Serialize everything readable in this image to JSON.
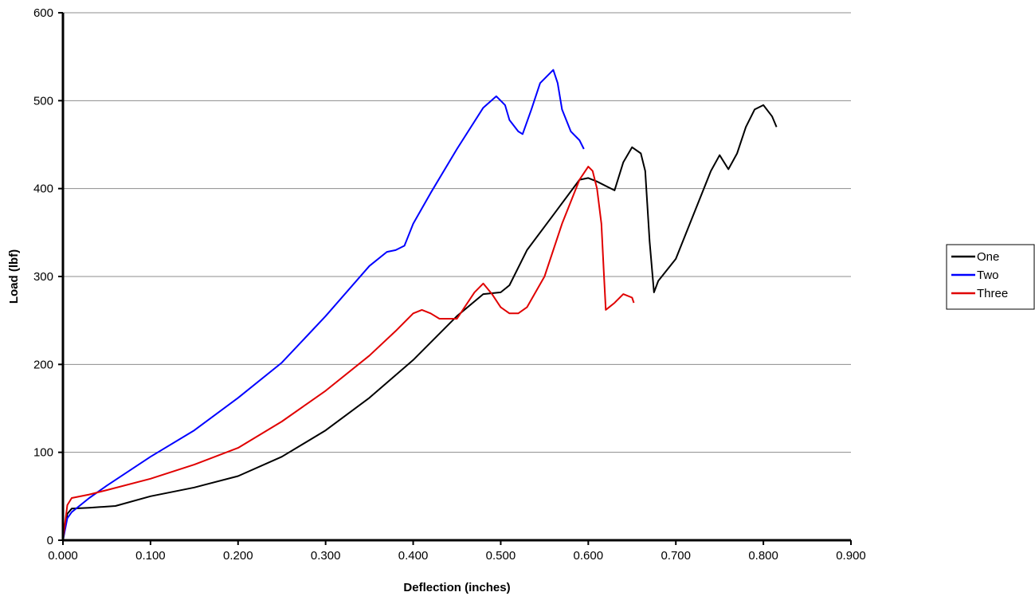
{
  "chart_data": {
    "type": "line",
    "title": "",
    "xlabel": "Deflection (inches)",
    "ylabel": "Load (lbf)",
    "xlim": [
      0,
      0.9
    ],
    "ylim": [
      0,
      600
    ],
    "x_ticks": [
      "0.000",
      "0.100",
      "0.200",
      "0.300",
      "0.400",
      "0.500",
      "0.600",
      "0.700",
      "0.800",
      "0.900"
    ],
    "y_ticks": [
      "0",
      "100",
      "200",
      "300",
      "400",
      "500",
      "600"
    ],
    "grid": "horizontal",
    "legend_position": "right",
    "series": [
      {
        "name": "One",
        "color": "#000000",
        "points": [
          [
            0,
            0
          ],
          [
            0.005,
            30
          ],
          [
            0.01,
            36
          ],
          [
            0.03,
            37
          ],
          [
            0.06,
            39
          ],
          [
            0.1,
            50
          ],
          [
            0.15,
            60
          ],
          [
            0.2,
            73
          ],
          [
            0.25,
            95
          ],
          [
            0.3,
            125
          ],
          [
            0.35,
            162
          ],
          [
            0.4,
            205
          ],
          [
            0.45,
            255
          ],
          [
            0.48,
            280
          ],
          [
            0.5,
            282
          ],
          [
            0.51,
            290
          ],
          [
            0.53,
            330
          ],
          [
            0.56,
            370
          ],
          [
            0.59,
            410
          ],
          [
            0.6,
            412
          ],
          [
            0.61,
            408
          ],
          [
            0.63,
            398
          ],
          [
            0.64,
            430
          ],
          [
            0.65,
            447
          ],
          [
            0.66,
            440
          ],
          [
            0.665,
            420
          ],
          [
            0.67,
            340
          ],
          [
            0.675,
            282
          ],
          [
            0.68,
            295
          ],
          [
            0.7,
            320
          ],
          [
            0.72,
            370
          ],
          [
            0.74,
            420
          ],
          [
            0.75,
            438
          ],
          [
            0.76,
            422
          ],
          [
            0.77,
            440
          ],
          [
            0.78,
            470
          ],
          [
            0.79,
            490
          ],
          [
            0.8,
            495
          ],
          [
            0.81,
            482
          ],
          [
            0.815,
            470
          ]
        ]
      },
      {
        "name": "Two",
        "color": "#0000ff",
        "points": [
          [
            0,
            0
          ],
          [
            0.005,
            25
          ],
          [
            0.01,
            32
          ],
          [
            0.03,
            48
          ],
          [
            0.05,
            62
          ],
          [
            0.1,
            95
          ],
          [
            0.15,
            125
          ],
          [
            0.2,
            162
          ],
          [
            0.25,
            202
          ],
          [
            0.3,
            255
          ],
          [
            0.35,
            312
          ],
          [
            0.37,
            328
          ],
          [
            0.38,
            330
          ],
          [
            0.39,
            335
          ],
          [
            0.4,
            360
          ],
          [
            0.42,
            395
          ],
          [
            0.45,
            445
          ],
          [
            0.48,
            492
          ],
          [
            0.495,
            505
          ],
          [
            0.505,
            495
          ],
          [
            0.51,
            478
          ],
          [
            0.52,
            465
          ],
          [
            0.525,
            462
          ],
          [
            0.535,
            490
          ],
          [
            0.545,
            520
          ],
          [
            0.56,
            535
          ],
          [
            0.565,
            520
          ],
          [
            0.57,
            490
          ],
          [
            0.58,
            465
          ],
          [
            0.59,
            455
          ],
          [
            0.595,
            445
          ]
        ]
      },
      {
        "name": "Three",
        "color": "#e00000",
        "points": [
          [
            0,
            0
          ],
          [
            0.005,
            40
          ],
          [
            0.01,
            48
          ],
          [
            0.03,
            52
          ],
          [
            0.05,
            57
          ],
          [
            0.1,
            70
          ],
          [
            0.15,
            86
          ],
          [
            0.2,
            105
          ],
          [
            0.25,
            135
          ],
          [
            0.3,
            170
          ],
          [
            0.35,
            210
          ],
          [
            0.38,
            238
          ],
          [
            0.4,
            258
          ],
          [
            0.41,
            262
          ],
          [
            0.42,
            258
          ],
          [
            0.43,
            252
          ],
          [
            0.45,
            252
          ],
          [
            0.47,
            282
          ],
          [
            0.48,
            292
          ],
          [
            0.49,
            280
          ],
          [
            0.5,
            265
          ],
          [
            0.51,
            258
          ],
          [
            0.52,
            258
          ],
          [
            0.53,
            265
          ],
          [
            0.55,
            300
          ],
          [
            0.57,
            360
          ],
          [
            0.59,
            410
          ],
          [
            0.6,
            425
          ],
          [
            0.605,
            420
          ],
          [
            0.61,
            400
          ],
          [
            0.615,
            360
          ],
          [
            0.618,
            300
          ],
          [
            0.62,
            262
          ],
          [
            0.63,
            270
          ],
          [
            0.64,
            280
          ],
          [
            0.65,
            276
          ],
          [
            0.652,
            270
          ]
        ]
      }
    ]
  }
}
